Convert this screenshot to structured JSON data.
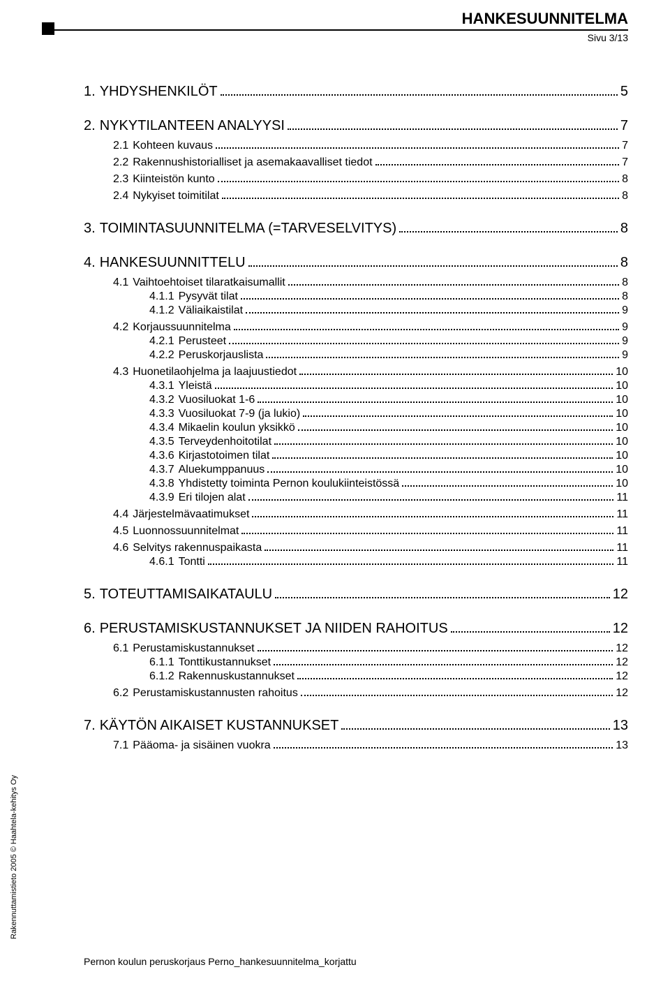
{
  "header": {
    "title": "HANKESUUNNITELMA",
    "subtitle": "Sivu 3/13"
  },
  "sidebar_text": "Rakennuttamistieto 2005 © Haahtela-kehitys Oy",
  "footer": "Pernon koulun peruskorjaus   Perno_hankesuunnitelma_korjattu",
  "toc": [
    {
      "level": 1,
      "num": "1.",
      "text": "YHDYSHENKILÖT",
      "page": "5"
    },
    {
      "level": 1,
      "num": "2.",
      "text": "NYKYTILANTEEN ANALYYSI",
      "page": "7"
    },
    {
      "level": 2,
      "num": "2.1",
      "text": "Kohteen kuvaus",
      "page": "7"
    },
    {
      "level": 2,
      "num": "2.2",
      "text": "Rakennushistorialliset ja asemakaavalliset tiedot",
      "page": "7"
    },
    {
      "level": 2,
      "num": "2.3",
      "text": "Kiinteistön kunto",
      "page": "8"
    },
    {
      "level": 2,
      "num": "2.4",
      "text": "Nykyiset toimitilat",
      "page": "8"
    },
    {
      "level": 1,
      "num": "3.",
      "text": "TOIMINTASUUNNITELMA (=TARVESELVITYS)",
      "page": "8"
    },
    {
      "level": 1,
      "num": "4.",
      "text": "HANKESUUNNITTELU",
      "page": "8"
    },
    {
      "level": 2,
      "num": "4.1",
      "text": "Vaihtoehtoiset tilaratkaisumallit",
      "page": "8"
    },
    {
      "level": 3,
      "num": "4.1.1",
      "text": "Pysyvät tilat",
      "page": "8"
    },
    {
      "level": 3,
      "num": "4.1.2",
      "text": "Väliaikaistilat",
      "page": "9"
    },
    {
      "level": 2,
      "num": "4.2",
      "text": "Korjaussuunnitelma",
      "page": "9"
    },
    {
      "level": 3,
      "num": "4.2.1",
      "text": "Perusteet",
      "page": "9"
    },
    {
      "level": 3,
      "num": "4.2.2",
      "text": "Peruskorjauslista",
      "page": "9"
    },
    {
      "level": 2,
      "num": "4.3",
      "text": "Huonetilaohjelma ja laajuustiedot",
      "page": "10"
    },
    {
      "level": 3,
      "num": "4.3.1",
      "text": "Yleistä",
      "page": "10"
    },
    {
      "level": 3,
      "num": "4.3.2",
      "text": "Vuosiluokat 1-6",
      "page": "10"
    },
    {
      "level": 3,
      "num": "4.3.3",
      "text": "Vuosiluokat 7-9 (ja lukio)",
      "page": "10"
    },
    {
      "level": 3,
      "num": "4.3.4",
      "text": "Mikaelin koulun yksikkö",
      "page": "10"
    },
    {
      "level": 3,
      "num": "4.3.5",
      "text": "Terveydenhoitotilat",
      "page": "10"
    },
    {
      "level": 3,
      "num": "4.3.6",
      "text": "Kirjastotoimen tilat",
      "page": "10"
    },
    {
      "level": 3,
      "num": "4.3.7",
      "text": "Aluekumppanuus",
      "page": "10"
    },
    {
      "level": 3,
      "num": "4.3.8",
      "text": "Yhdistetty toiminta Pernon koulukiinteistössä",
      "page": "10"
    },
    {
      "level": 3,
      "num": "4.3.9",
      "text": "Eri tilojen alat",
      "page": "11"
    },
    {
      "level": 2,
      "num": "4.4",
      "text": "Järjestelmävaatimukset",
      "page": "11"
    },
    {
      "level": 2,
      "num": "4.5",
      "text": "Luonnossuunnitelmat",
      "page": "11"
    },
    {
      "level": 2,
      "num": "4.6",
      "text": "Selvitys rakennuspaikasta",
      "page": "11"
    },
    {
      "level": 3,
      "num": "4.6.1",
      "text": "Tontti",
      "page": "11"
    },
    {
      "level": 1,
      "num": "5.",
      "text": "TOTEUTTAMISAIKATAULU",
      "page": "12"
    },
    {
      "level": 1,
      "num": "6.",
      "text": "PERUSTAMISKUSTANNUKSET JA NIIDEN RAHOITUS",
      "page": "12"
    },
    {
      "level": 2,
      "num": "6.1",
      "text": "Perustamiskustannukset",
      "page": "12"
    },
    {
      "level": 3,
      "num": "6.1.1",
      "text": "Tonttikustannukset",
      "page": "12"
    },
    {
      "level": 3,
      "num": "6.1.2",
      "text": "Rakennuskustannukset",
      "page": "12"
    },
    {
      "level": 2,
      "num": "6.2",
      "text": "Perustamiskustannusten rahoitus",
      "page": "12"
    },
    {
      "level": 1,
      "num": "7.",
      "text": "KÄYTÖN AIKAISET KUSTANNUKSET",
      "page": "13"
    },
    {
      "level": 2,
      "num": "7.1",
      "text": "Pääoma- ja sisäinen vuokra",
      "page": "13"
    }
  ]
}
